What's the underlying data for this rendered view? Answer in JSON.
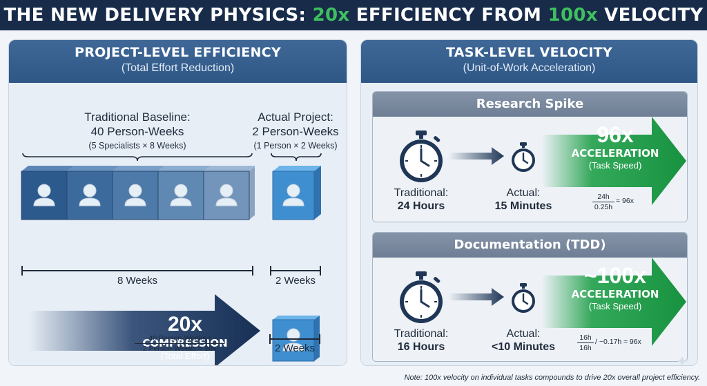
{
  "title": {
    "part1": "THE NEW DELIVERY PHYSICS: ",
    "hl1": "20x",
    "part2": " EFFICIENCY FROM ",
    "hl2": "100x",
    "part3": " VELOCITY"
  },
  "left_panel": {
    "title": "PROJECT-LEVEL EFFICIENCY",
    "subtitle": "(Total Effort Reduction)",
    "baseline": {
      "heading": "Traditional Baseline:",
      "value": "40 Person-Weeks",
      "detail": "(5 Specialists × 8 Weeks)",
      "specialists": 5,
      "duration_label": "8 Weeks"
    },
    "actual": {
      "heading": "Actual Project:",
      "value": "2 Person-Weeks",
      "detail": "(1 Person × 2 Weeks)",
      "persons": 1,
      "duration_label": "2 Weeks"
    },
    "compression": {
      "value": "20x",
      "label": "COMPRESSION",
      "sub": "(Total Effort)",
      "frac_num": "40 Person-Weeks /",
      "frac_den": "2 Person-Weeks = 20x",
      "result_duration": "2 Weeks"
    }
  },
  "right_panel": {
    "title": "TASK-LEVEL VELOCITY",
    "subtitle": "(Unit-of-Work Acceleration)",
    "tasks": [
      {
        "name": "Research Spike",
        "trad_label": "Traditional:",
        "trad_value": "24 Hours",
        "actual_label": "Actual:",
        "actual_value": "15 Minutes",
        "accel": "96x",
        "accel_label": "ACCELERATION",
        "accel_sub": "(Task Speed)",
        "frac_num": "24h",
        "frac_den": "0.25h",
        "frac_result": "= 96x"
      },
      {
        "name": "Documentation (TDD)",
        "trad_label": "Traditional:",
        "trad_value": "16 Hours",
        "actual_label": "Actual:",
        "actual_value": "<10 Minutes",
        "accel": "~100x",
        "accel_label": "ACCELERATION",
        "accel_sub": "(Task Speed)",
        "frac_num": "16h",
        "frac_den": "16h",
        "frac_result": "/ ~0.17h ≈ 96x"
      }
    ]
  },
  "note": "Note: 100x velocity on individual tasks compounds to drive 20x overall project efficiency.",
  "colors": {
    "navy": "#182c4a",
    "accent_green": "#3fbf5f",
    "panel_blue": "#2f5786",
    "cube_blue": "#3f8fd0",
    "cube_slate": "#3b5f8a"
  }
}
